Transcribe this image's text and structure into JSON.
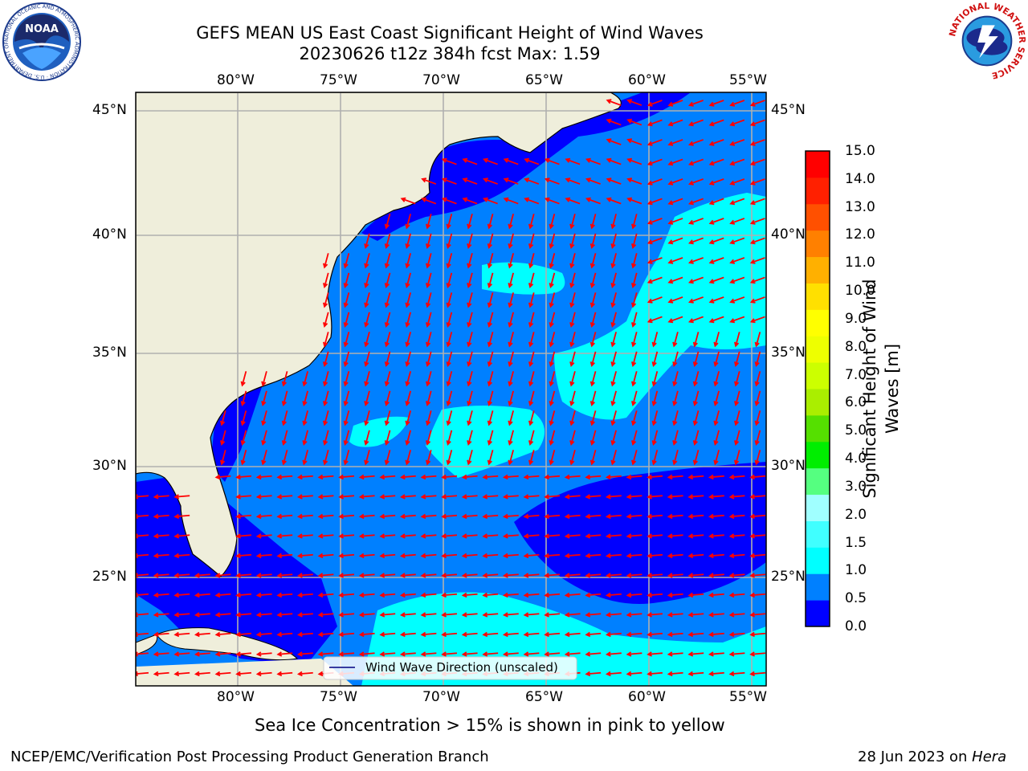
{
  "header": {
    "title_line1": "GEFS MEAN US East Coast Significant Height of Wind Waves",
    "title_line2": "20230626 t12z 384h fcst   Max: 1.59"
  },
  "logos": {
    "left": {
      "text": "NOAA",
      "ring_text": "NATIONAL OCEANIC AND ATMOSPHERIC ADMINISTRATION · U.S. DEPARTMENT OF COMMERCE"
    },
    "right": {
      "ring_text": "NATIONAL WEATHER SERVICE"
    }
  },
  "map": {
    "lon_labels": [
      "80°W",
      "75°W",
      "70°W",
      "65°W",
      "60°W",
      "55°W"
    ],
    "lat_labels": [
      "45°N",
      "40°N",
      "35°N",
      "30°N",
      "25°N"
    ],
    "legend_label": "Wind Wave Direction (unscaled)",
    "colors": {
      "land": "#efeedb",
      "level_0": "#0000ff",
      "level_05": "#0080ff",
      "level_1": "#00ffff",
      "grid": "#b0b0b0",
      "arrow": "#ff0000",
      "coast": "#000000"
    }
  },
  "colorbar": {
    "title": "Significant Height of Wind Waves [m]",
    "title_line1": "Significant Height of Wind",
    "title_line2": "Waves [m]",
    "ticks": [
      "15.0",
      "14.0",
      "13.0",
      "12.0",
      "11.0",
      "10.0",
      "9.0",
      "8.0",
      "7.0",
      "6.0",
      "5.0",
      "4.0",
      "3.0",
      "2.0",
      "1.5",
      "1.0",
      "0.5",
      "0.0"
    ],
    "colors": [
      "#0000ff",
      "#0080ff",
      "#00ffff",
      "#40ffff",
      "#a0ffff",
      "#55ff80",
      "#00ee00",
      "#55e000",
      "#aaee00",
      "#ccff00",
      "#eeff00",
      "#ffff00",
      "#ffe000",
      "#ffb000",
      "#ff8000",
      "#ff5000",
      "#ff2000",
      "#ff0000"
    ]
  },
  "footer": {
    "subtitle": "Sea Ice Concentration > 15% is shown in pink to yellow",
    "left": "NCEP/EMC/Verification Post Processing Product Generation Branch",
    "right_date": "28 Jun 2023 on ",
    "right_host": "Hera"
  }
}
